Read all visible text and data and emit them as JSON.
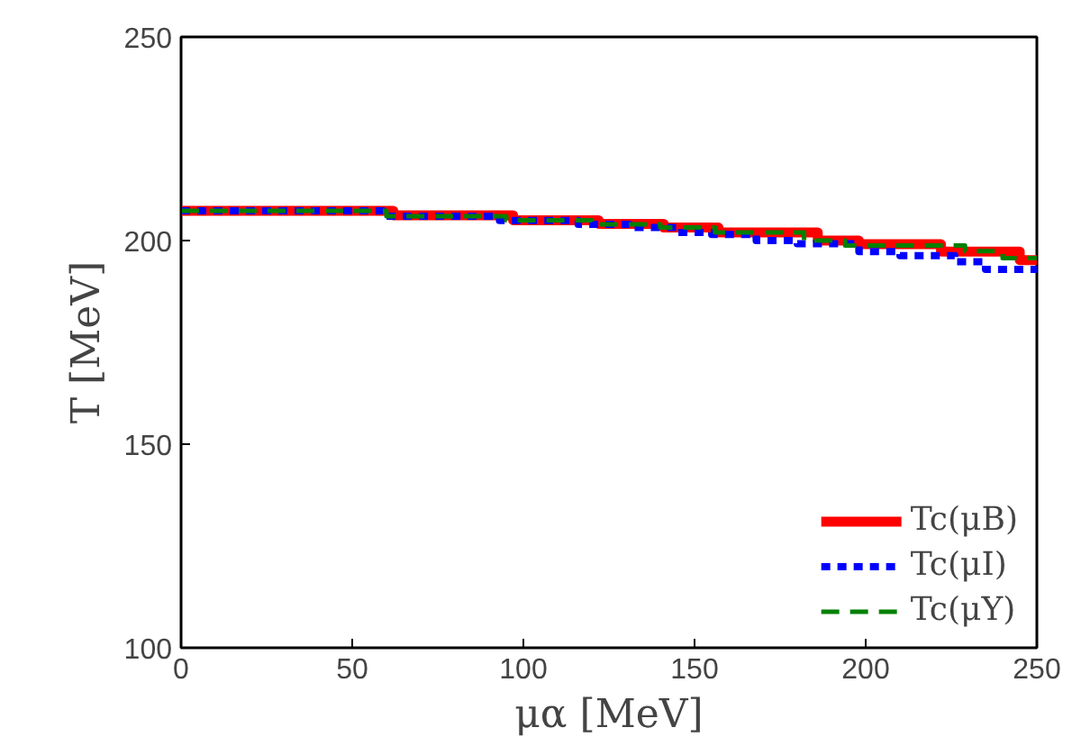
{
  "chart_data": {
    "type": "step",
    "xlabel": "μα [MeV]",
    "ylabel": "T [MeV]",
    "xlim": [
      0,
      250
    ],
    "ylim": [
      100,
      250
    ],
    "xticks": [
      0,
      50,
      100,
      150,
      200,
      250
    ],
    "yticks": [
      100,
      150,
      200,
      250
    ],
    "grid": false,
    "legend": "bottom right",
    "series": [
      {
        "name": "Tc(μB)",
        "color": "#ff0000",
        "line_style": "solid",
        "x": [
          0,
          62,
          97,
          122,
          141,
          157,
          186,
          198,
          222,
          245,
          250
        ],
        "values": [
          207.3,
          206.2,
          205,
          204.1,
          203.2,
          202,
          200,
          199.1,
          197.3,
          195.2,
          195.2
        ]
      },
      {
        "name": "Tc(μI)",
        "color": "#0000ff",
        "line_style": "dotted",
        "x": [
          0,
          59,
          93,
          116,
          131,
          145,
          155,
          168,
          180,
          198,
          210,
          226,
          235,
          250
        ],
        "values": [
          207.3,
          206,
          204.9,
          204,
          203.2,
          202,
          201.5,
          200,
          199.2,
          197.3,
          196.3,
          194.8,
          192.9,
          192
        ]
      },
      {
        "name": "Tc(μY)",
        "color": "#008000",
        "line_style": "dashed",
        "x": [
          0,
          60,
          95,
          120,
          140,
          156,
          182,
          194,
          229,
          240,
          250
        ],
        "values": [
          207.3,
          206,
          205,
          204,
          203.2,
          202,
          200,
          198.8,
          197.4,
          195.7,
          195.5
        ]
      }
    ]
  }
}
